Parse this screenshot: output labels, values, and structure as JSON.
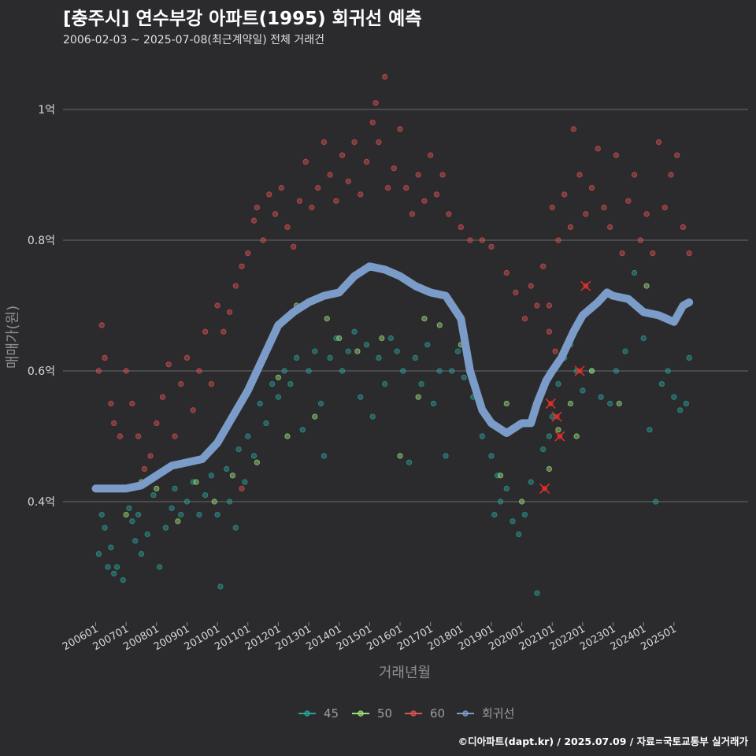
{
  "header": {
    "title": "[충주시] 연수부강 아파트(1995) 회귀선 예측",
    "subtitle": "2006-02-03 ~ 2025-07-08(최근계약일) 전체 거래건"
  },
  "footer": {
    "caption": "©디아파트(dapt.kr) / 2025.07.09 / 자료=국토교통부 실거래가"
  },
  "colors": {
    "background": "#2b2b2d",
    "grid": "#6a6a6a",
    "s45": "#2aa198",
    "s50": "#9be07a",
    "s60": "#d9534f",
    "regression": "#7b9cc9",
    "recent_marker": "#e8302a"
  },
  "chart_data": {
    "type": "scatter",
    "xlabel": "거래년월",
    "ylabel": "매매가(원)",
    "x_ticks": [
      "200601",
      "200701",
      "200801",
      "200901",
      "201001",
      "201101",
      "201201",
      "201301",
      "201401",
      "201501",
      "201601",
      "201701",
      "201801",
      "201901",
      "202001",
      "202101",
      "202201",
      "202301",
      "202401",
      "202501"
    ],
    "y_ticks": [
      {
        "value": 0.4,
        "label": "0.4억"
      },
      {
        "value": 0.6,
        "label": "0.6억"
      },
      {
        "value": 0.8,
        "label": "0.8억"
      },
      {
        "value": 1.0,
        "label": "1억"
      }
    ],
    "xlim": [
      2006.0,
      2025.6
    ],
    "ylim": [
      0.21,
      1.07
    ],
    "grid": true,
    "legend_position": "bottom",
    "legend": [
      {
        "name": "45",
        "color_key": "s45"
      },
      {
        "name": "50",
        "color_key": "s50"
      },
      {
        "name": "60",
        "color_key": "s60"
      },
      {
        "name": "회귀선",
        "color_key": "regression"
      }
    ],
    "regression": [
      [
        2006.0,
        0.42
      ],
      [
        2006.5,
        0.42
      ],
      [
        2007.0,
        0.42
      ],
      [
        2007.5,
        0.425
      ],
      [
        2008.0,
        0.44
      ],
      [
        2008.5,
        0.455
      ],
      [
        2009.0,
        0.46
      ],
      [
        2009.5,
        0.465
      ],
      [
        2010.0,
        0.49
      ],
      [
        2010.5,
        0.53
      ],
      [
        2011.0,
        0.57
      ],
      [
        2011.5,
        0.62
      ],
      [
        2012.0,
        0.67
      ],
      [
        2012.5,
        0.69
      ],
      [
        2013.0,
        0.705
      ],
      [
        2013.5,
        0.715
      ],
      [
        2014.0,
        0.72
      ],
      [
        2014.5,
        0.745
      ],
      [
        2015.0,
        0.76
      ],
      [
        2015.5,
        0.755
      ],
      [
        2016.0,
        0.745
      ],
      [
        2016.5,
        0.73
      ],
      [
        2017.0,
        0.72
      ],
      [
        2017.5,
        0.715
      ],
      [
        2018.0,
        0.68
      ],
      [
        2018.3,
        0.6
      ],
      [
        2018.7,
        0.54
      ],
      [
        2019.0,
        0.52
      ],
      [
        2019.5,
        0.505
      ],
      [
        2020.0,
        0.52
      ],
      [
        2020.3,
        0.52
      ],
      [
        2020.5,
        0.55
      ],
      [
        2020.8,
        0.585
      ],
      [
        2021.0,
        0.6
      ],
      [
        2021.3,
        0.62
      ],
      [
        2021.7,
        0.66
      ],
      [
        2022.0,
        0.685
      ],
      [
        2022.5,
        0.705
      ],
      [
        2022.8,
        0.72
      ],
      [
        2023.0,
        0.715
      ],
      [
        2023.5,
        0.71
      ],
      [
        2024.0,
        0.69
      ],
      [
        2024.5,
        0.685
      ],
      [
        2025.0,
        0.675
      ],
      [
        2025.3,
        0.7
      ],
      [
        2025.5,
        0.705
      ]
    ],
    "points_45": [
      [
        2006.1,
        0.32
      ],
      [
        2006.2,
        0.38
      ],
      [
        2006.3,
        0.36
      ],
      [
        2006.4,
        0.3
      ],
      [
        2006.5,
        0.33
      ],
      [
        2006.6,
        0.29
      ],
      [
        2006.7,
        0.3
      ],
      [
        2006.9,
        0.28
      ],
      [
        2007.1,
        0.39
      ],
      [
        2007.2,
        0.37
      ],
      [
        2007.3,
        0.34
      ],
      [
        2007.4,
        0.38
      ],
      [
        2007.5,
        0.32
      ],
      [
        2007.7,
        0.35
      ],
      [
        2007.9,
        0.41
      ],
      [
        2008.1,
        0.3
      ],
      [
        2008.3,
        0.36
      ],
      [
        2008.5,
        0.39
      ],
      [
        2008.6,
        0.42
      ],
      [
        2008.8,
        0.38
      ],
      [
        2009.0,
        0.4
      ],
      [
        2009.2,
        0.43
      ],
      [
        2009.4,
        0.38
      ],
      [
        2009.6,
        0.41
      ],
      [
        2009.8,
        0.44
      ],
      [
        2010.0,
        0.38
      ],
      [
        2010.1,
        0.27
      ],
      [
        2010.3,
        0.45
      ],
      [
        2010.4,
        0.4
      ],
      [
        2010.6,
        0.36
      ],
      [
        2010.7,
        0.48
      ],
      [
        2010.9,
        0.43
      ],
      [
        2011.0,
        0.5
      ],
      [
        2011.2,
        0.47
      ],
      [
        2011.4,
        0.55
      ],
      [
        2011.6,
        0.52
      ],
      [
        2011.8,
        0.58
      ],
      [
        2012.0,
        0.56
      ],
      [
        2012.2,
        0.6
      ],
      [
        2012.4,
        0.58
      ],
      [
        2012.6,
        0.62
      ],
      [
        2012.8,
        0.51
      ],
      [
        2013.0,
        0.6
      ],
      [
        2013.2,
        0.63
      ],
      [
        2013.4,
        0.55
      ],
      [
        2013.5,
        0.47
      ],
      [
        2013.7,
        0.62
      ],
      [
        2013.9,
        0.65
      ],
      [
        2014.1,
        0.6
      ],
      [
        2014.3,
        0.63
      ],
      [
        2014.5,
        0.66
      ],
      [
        2014.7,
        0.56
      ],
      [
        2014.9,
        0.64
      ],
      [
        2015.1,
        0.53
      ],
      [
        2015.3,
        0.62
      ],
      [
        2015.5,
        0.58
      ],
      [
        2015.7,
        0.65
      ],
      [
        2015.9,
        0.63
      ],
      [
        2016.1,
        0.6
      ],
      [
        2016.3,
        0.46
      ],
      [
        2016.5,
        0.62
      ],
      [
        2016.7,
        0.58
      ],
      [
        2016.9,
        0.64
      ],
      [
        2017.1,
        0.55
      ],
      [
        2017.3,
        0.6
      ],
      [
        2017.5,
        0.47
      ],
      [
        2017.7,
        0.6
      ],
      [
        2017.9,
        0.63
      ],
      [
        2018.1,
        0.59
      ],
      [
        2018.4,
        0.56
      ],
      [
        2018.7,
        0.5
      ],
      [
        2019.0,
        0.47
      ],
      [
        2019.1,
        0.38
      ],
      [
        2019.2,
        0.44
      ],
      [
        2019.3,
        0.4
      ],
      [
        2019.5,
        0.42
      ],
      [
        2019.7,
        0.37
      ],
      [
        2019.9,
        0.35
      ],
      [
        2020.1,
        0.38
      ],
      [
        2020.3,
        0.43
      ],
      [
        2020.5,
        0.26
      ],
      [
        2020.7,
        0.48
      ],
      [
        2020.9,
        0.5
      ],
      [
        2021.0,
        0.53
      ],
      [
        2021.2,
        0.58
      ],
      [
        2021.4,
        0.62
      ],
      [
        2021.6,
        0.64
      ],
      [
        2021.8,
        0.6
      ],
      [
        2022.0,
        0.57
      ],
      [
        2022.3,
        0.6
      ],
      [
        2022.6,
        0.56
      ],
      [
        2022.9,
        0.55
      ],
      [
        2023.1,
        0.6
      ],
      [
        2023.4,
        0.63
      ],
      [
        2023.7,
        0.75
      ],
      [
        2024.0,
        0.65
      ],
      [
        2024.2,
        0.51
      ],
      [
        2024.4,
        0.4
      ],
      [
        2024.6,
        0.58
      ],
      [
        2024.8,
        0.6
      ],
      [
        2025.0,
        0.56
      ],
      [
        2025.2,
        0.54
      ],
      [
        2025.4,
        0.55
      ],
      [
        2025.5,
        0.62
      ]
    ],
    "points_50": [
      [
        2007.0,
        0.38
      ],
      [
        2007.5,
        0.43
      ],
      [
        2008.0,
        0.42
      ],
      [
        2008.7,
        0.37
      ],
      [
        2009.3,
        0.43
      ],
      [
        2009.9,
        0.4
      ],
      [
        2010.5,
        0.44
      ],
      [
        2011.3,
        0.46
      ],
      [
        2012.0,
        0.59
      ],
      [
        2012.3,
        0.5
      ],
      [
        2012.6,
        0.7
      ],
      [
        2013.2,
        0.53
      ],
      [
        2013.6,
        0.68
      ],
      [
        2014.0,
        0.65
      ],
      [
        2014.6,
        0.63
      ],
      [
        2015.4,
        0.65
      ],
      [
        2016.0,
        0.47
      ],
      [
        2016.6,
        0.56
      ],
      [
        2016.8,
        0.68
      ],
      [
        2017.3,
        0.67
      ],
      [
        2018.0,
        0.64
      ],
      [
        2019.3,
        0.44
      ],
      [
        2019.5,
        0.55
      ],
      [
        2020.0,
        0.4
      ],
      [
        2020.9,
        0.45
      ],
      [
        2021.2,
        0.51
      ],
      [
        2021.6,
        0.55
      ],
      [
        2021.8,
        0.5
      ],
      [
        2022.3,
        0.6
      ],
      [
        2023.2,
        0.55
      ],
      [
        2024.1,
        0.73
      ]
    ],
    "points_60": [
      [
        2006.1,
        0.6
      ],
      [
        2006.2,
        0.67
      ],
      [
        2006.3,
        0.62
      ],
      [
        2006.5,
        0.55
      ],
      [
        2006.6,
        0.52
      ],
      [
        2006.8,
        0.5
      ],
      [
        2007.0,
        0.6
      ],
      [
        2007.2,
        0.55
      ],
      [
        2007.4,
        0.5
      ],
      [
        2007.6,
        0.45
      ],
      [
        2007.8,
        0.47
      ],
      [
        2008.0,
        0.52
      ],
      [
        2008.2,
        0.56
      ],
      [
        2008.4,
        0.61
      ],
      [
        2008.6,
        0.5
      ],
      [
        2008.8,
        0.58
      ],
      [
        2009.0,
        0.62
      ],
      [
        2009.2,
        0.54
      ],
      [
        2009.4,
        0.6
      ],
      [
        2009.6,
        0.66
      ],
      [
        2009.8,
        0.58
      ],
      [
        2010.0,
        0.7
      ],
      [
        2010.2,
        0.66
      ],
      [
        2010.4,
        0.69
      ],
      [
        2010.6,
        0.73
      ],
      [
        2010.8,
        0.76
      ],
      [
        2011.0,
        0.78
      ],
      [
        2011.2,
        0.83
      ],
      [
        2011.3,
        0.85
      ],
      [
        2011.5,
        0.8
      ],
      [
        2011.7,
        0.87
      ],
      [
        2011.9,
        0.84
      ],
      [
        2012.1,
        0.88
      ],
      [
        2012.3,
        0.82
      ],
      [
        2012.5,
        0.79
      ],
      [
        2012.7,
        0.86
      ],
      [
        2012.9,
        0.92
      ],
      [
        2013.1,
        0.85
      ],
      [
        2013.3,
        0.88
      ],
      [
        2013.5,
        0.95
      ],
      [
        2013.7,
        0.9
      ],
      [
        2013.9,
        0.86
      ],
      [
        2014.1,
        0.93
      ],
      [
        2014.3,
        0.89
      ],
      [
        2014.5,
        0.95
      ],
      [
        2014.7,
        0.87
      ],
      [
        2014.9,
        0.92
      ],
      [
        2015.1,
        0.98
      ],
      [
        2015.2,
        1.01
      ],
      [
        2015.3,
        0.95
      ],
      [
        2015.5,
        1.05
      ],
      [
        2015.6,
        0.88
      ],
      [
        2015.8,
        0.91
      ],
      [
        2016.0,
        0.97
      ],
      [
        2016.2,
        0.88
      ],
      [
        2016.4,
        0.84
      ],
      [
        2016.6,
        0.9
      ],
      [
        2016.8,
        0.86
      ],
      [
        2017.0,
        0.93
      ],
      [
        2017.2,
        0.87
      ],
      [
        2017.4,
        0.9
      ],
      [
        2017.6,
        0.84
      ],
      [
        2018.0,
        0.82
      ],
      [
        2018.3,
        0.8
      ],
      [
        2018.7,
        0.8
      ],
      [
        2019.0,
        0.79
      ],
      [
        2019.5,
        0.75
      ],
      [
        2019.8,
        0.72
      ],
      [
        2020.1,
        0.68
      ],
      [
        2020.3,
        0.73
      ],
      [
        2020.5,
        0.7
      ],
      [
        2020.7,
        0.76
      ],
      [
        2020.9,
        0.7
      ],
      [
        2021.0,
        0.85
      ],
      [
        2021.2,
        0.8
      ],
      [
        2021.4,
        0.87
      ],
      [
        2021.6,
        0.82
      ],
      [
        2021.7,
        0.97
      ],
      [
        2021.9,
        0.9
      ],
      [
        2022.1,
        0.84
      ],
      [
        2022.3,
        0.88
      ],
      [
        2022.5,
        0.94
      ],
      [
        2022.7,
        0.85
      ],
      [
        2022.9,
        0.82
      ],
      [
        2023.1,
        0.93
      ],
      [
        2023.3,
        0.78
      ],
      [
        2023.5,
        0.86
      ],
      [
        2023.7,
        0.9
      ],
      [
        2023.9,
        0.8
      ],
      [
        2024.1,
        0.84
      ],
      [
        2024.3,
        0.78
      ],
      [
        2024.5,
        0.95
      ],
      [
        2024.7,
        0.85
      ],
      [
        2024.9,
        0.9
      ],
      [
        2025.1,
        0.93
      ],
      [
        2025.3,
        0.82
      ],
      [
        2025.5,
        0.78
      ],
      [
        2010.8,
        0.42
      ],
      [
        2020.9,
        0.66
      ],
      [
        2021.1,
        0.63
      ]
    ],
    "recent_markers": [
      [
        2020.75,
        0.42
      ],
      [
        2020.95,
        0.55
      ],
      [
        2021.15,
        0.53
      ],
      [
        2021.25,
        0.5
      ],
      [
        2021.9,
        0.6
      ],
      [
        2022.1,
        0.73
      ]
    ]
  }
}
